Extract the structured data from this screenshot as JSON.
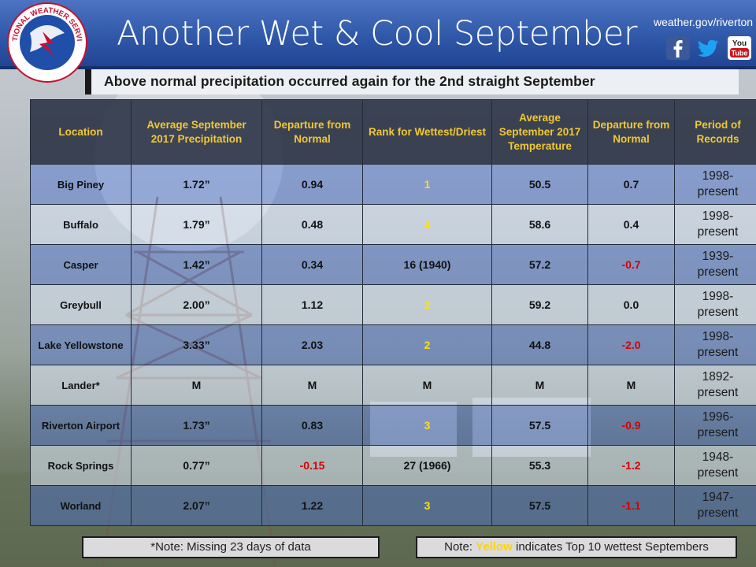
{
  "header": {
    "title": "Another Wet & Cool September",
    "site_link": "weather.gov/riverton",
    "logo_text": "NATIONAL WEATHER SERVICE",
    "social": [
      "facebook-icon",
      "twitter-icon",
      "youtube-icon"
    ],
    "youtube_label": "You Tube"
  },
  "subtitle": "Above normal precipitation occurred again for the 2nd straight September",
  "colors": {
    "header_blue": "#2f57a8",
    "header_text": "#f2c832",
    "highlight_yellow": "#ffdc1e",
    "negative_red": "#d70000"
  },
  "table": {
    "headers": [
      "Location",
      "Average September 2017 Precipitation",
      "Departure from Normal",
      "Rank for Wettest/Driest",
      "Average September 2017 Temperature",
      "Departure from Normal",
      "Period of Records"
    ],
    "rows": [
      {
        "location": "Big Piney",
        "precip": "1.72”",
        "precip_dep": "0.94",
        "rank": "1",
        "temp": "50.5",
        "temp_dep": "0.7",
        "period_start": "1998-",
        "period_end": "present"
      },
      {
        "location": "Buffalo",
        "precip": "1.79”",
        "precip_dep": "0.48",
        "rank": "4",
        "temp": "58.6",
        "temp_dep": "0.4",
        "period_start": "1998-",
        "period_end": "present"
      },
      {
        "location": "Casper",
        "precip": "1.42”",
        "precip_dep": "0.34",
        "rank": "16 (1940)",
        "temp": "57.2",
        "temp_dep": "-0.7",
        "period_start": "1939-",
        "period_end": "present"
      },
      {
        "location": "Greybull",
        "precip": "2.00”",
        "precip_dep": "1.12",
        "rank": "2",
        "temp": "59.2",
        "temp_dep": "0.0",
        "period_start": "1998-",
        "period_end": "present"
      },
      {
        "location": "Lake Yellowstone",
        "precip": "3.33”",
        "precip_dep": "2.03",
        "rank": "2",
        "temp": "44.8",
        "temp_dep": "-2.0",
        "period_start": "1998-",
        "period_end": "present"
      },
      {
        "location": "Lander*",
        "precip": "M",
        "precip_dep": "M",
        "rank": "M",
        "temp": "M",
        "temp_dep": "M",
        "period_start": "1892-",
        "period_end": "present"
      },
      {
        "location": "Riverton Airport",
        "precip": "1.73”",
        "precip_dep": "0.83",
        "rank": "3",
        "temp": "57.5",
        "temp_dep": "-0.9",
        "period_start": "1996-",
        "period_end": "present"
      },
      {
        "location": "Rock Springs",
        "precip": "0.77”",
        "precip_dep": "-0.15",
        "rank": "27 (1966)",
        "temp": "55.3",
        "temp_dep": "-1.2",
        "period_start": "1948-",
        "period_end": "present"
      },
      {
        "location": "Worland",
        "precip": "2.07”",
        "precip_dep": "1.22",
        "rank": "3",
        "temp": "57.5",
        "temp_dep": "-1.1",
        "period_start": "1947-",
        "period_end": "present"
      }
    ]
  },
  "notes": {
    "left": "*Note: Missing 23 days of data",
    "right_prefix": "Note: ",
    "right_highlight": "Yellow",
    "right_suffix": " indicates Top 10 wettest Septembers"
  }
}
